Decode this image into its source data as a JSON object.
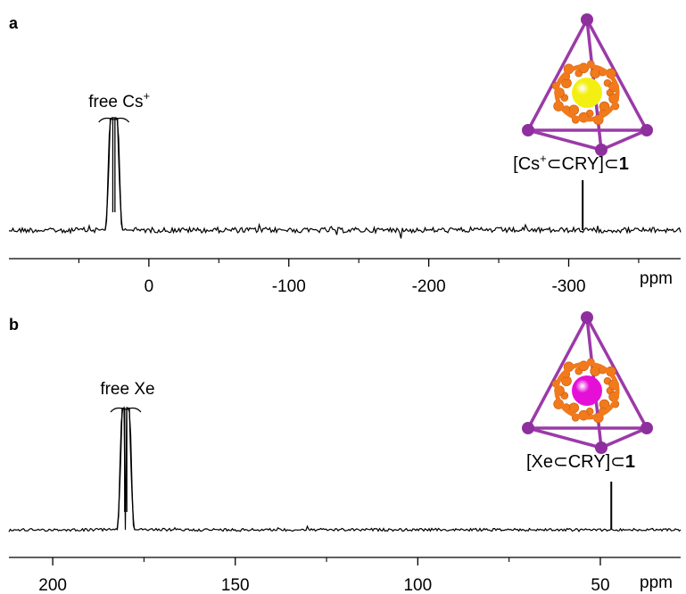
{
  "chart_data": [
    {
      "type": "line",
      "panel": "a",
      "xlabel": "ppm",
      "xlim": [
        100,
        -380
      ],
      "x_reversed": true,
      "ticks_major": [
        0,
        -100,
        -200,
        -300
      ],
      "tick_labels": [
        "0",
        "-100",
        "-200",
        "-300"
      ],
      "ticks_minor": [
        50,
        -50,
        -150,
        -250,
        -350
      ],
      "peaks": [
        {
          "position": 25,
          "label": "free Cs",
          "label_sup": "+",
          "truncated": true
        },
        {
          "position": -310,
          "label_parts": [
            "[Cs",
            "+",
            "⊂CRY]⊂",
            "1"
          ]
        }
      ],
      "inset_guest_color": "#f3ef12"
    },
    {
      "type": "line",
      "panel": "b",
      "xlabel": "ppm",
      "xlim": [
        212,
        28
      ],
      "x_reversed": true,
      "ticks_major": [
        200,
        150,
        100,
        50
      ],
      "tick_labels": [
        "200",
        "150",
        "100",
        "50"
      ],
      "ticks_minor": [
        175,
        125,
        75
      ],
      "peaks": [
        {
          "position": 180,
          "label": "free Xe",
          "truncated": true
        },
        {
          "position": 47,
          "label_parts": [
            "[Xe⊂CRY]⊂",
            "1"
          ]
        }
      ],
      "inset_guest_color": "#e60fd7"
    }
  ],
  "colors": {
    "trace": "#000000",
    "cage_edge": "#9b3aa8",
    "cage_vertex": "#8e2f9e",
    "framework": "#f07a1c"
  }
}
